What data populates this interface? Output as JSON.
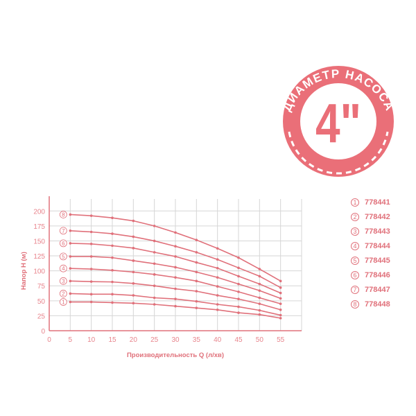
{
  "badge": {
    "arc_text": "ДИАМЕТР НАСОСА",
    "value": "4\"",
    "color": "#ea6f78"
  },
  "chart_data": {
    "type": "line",
    "title": "",
    "xlabel": "Производительность Q (л/хв)",
    "ylabel": "Напор H (м)",
    "xlim": [
      0,
      60
    ],
    "ylim": [
      0,
      220
    ],
    "xticks": [
      0,
      5,
      10,
      15,
      20,
      25,
      30,
      35,
      40,
      45,
      50,
      55
    ],
    "yticks": [
      0,
      25,
      50,
      75,
      100,
      125,
      150,
      175,
      200
    ],
    "grid": true,
    "legend_position": "right",
    "color": "#e0707a",
    "x": [
      5,
      10,
      15,
      20,
      25,
      30,
      35,
      40,
      45,
      50,
      55
    ],
    "series": [
      {
        "marker": "1",
        "name": "778441",
        "values": [
          48,
          48,
          47,
          46,
          44,
          41,
          38,
          35,
          30,
          27,
          21
        ]
      },
      {
        "marker": "2",
        "name": "778442",
        "values": [
          62,
          61,
          61,
          59,
          55,
          53,
          49,
          44,
          40,
          34,
          26
        ]
      },
      {
        "marker": "3",
        "name": "778443",
        "values": [
          83,
          82,
          81.5,
          79,
          75,
          70,
          66,
          59,
          53,
          45,
          35
        ]
      },
      {
        "marker": "4",
        "name": "778444",
        "values": [
          104,
          103,
          101,
          98,
          94,
          89,
          83,
          74,
          65,
          55,
          45
        ]
      },
      {
        "marker": "5",
        "name": "778445",
        "values": [
          124,
          124,
          122,
          117,
          112,
          106,
          98,
          89,
          78,
          67,
          54
        ]
      },
      {
        "marker": "6",
        "name": "778446",
        "values": [
          146,
          145,
          142,
          138,
          131,
          124,
          114,
          104.5,
          91,
          78,
          63
        ]
      },
      {
        "marker": "7",
        "name": "778447",
        "values": [
          167,
          165,
          162,
          157,
          150,
          141,
          131,
          119,
          105,
          91,
          72
        ]
      },
      {
        "marker": "8",
        "name": "778448",
        "values": [
          194,
          192,
          188.5,
          183.5,
          175,
          164,
          151.5,
          137.5,
          122,
          103,
          83
        ]
      }
    ]
  }
}
